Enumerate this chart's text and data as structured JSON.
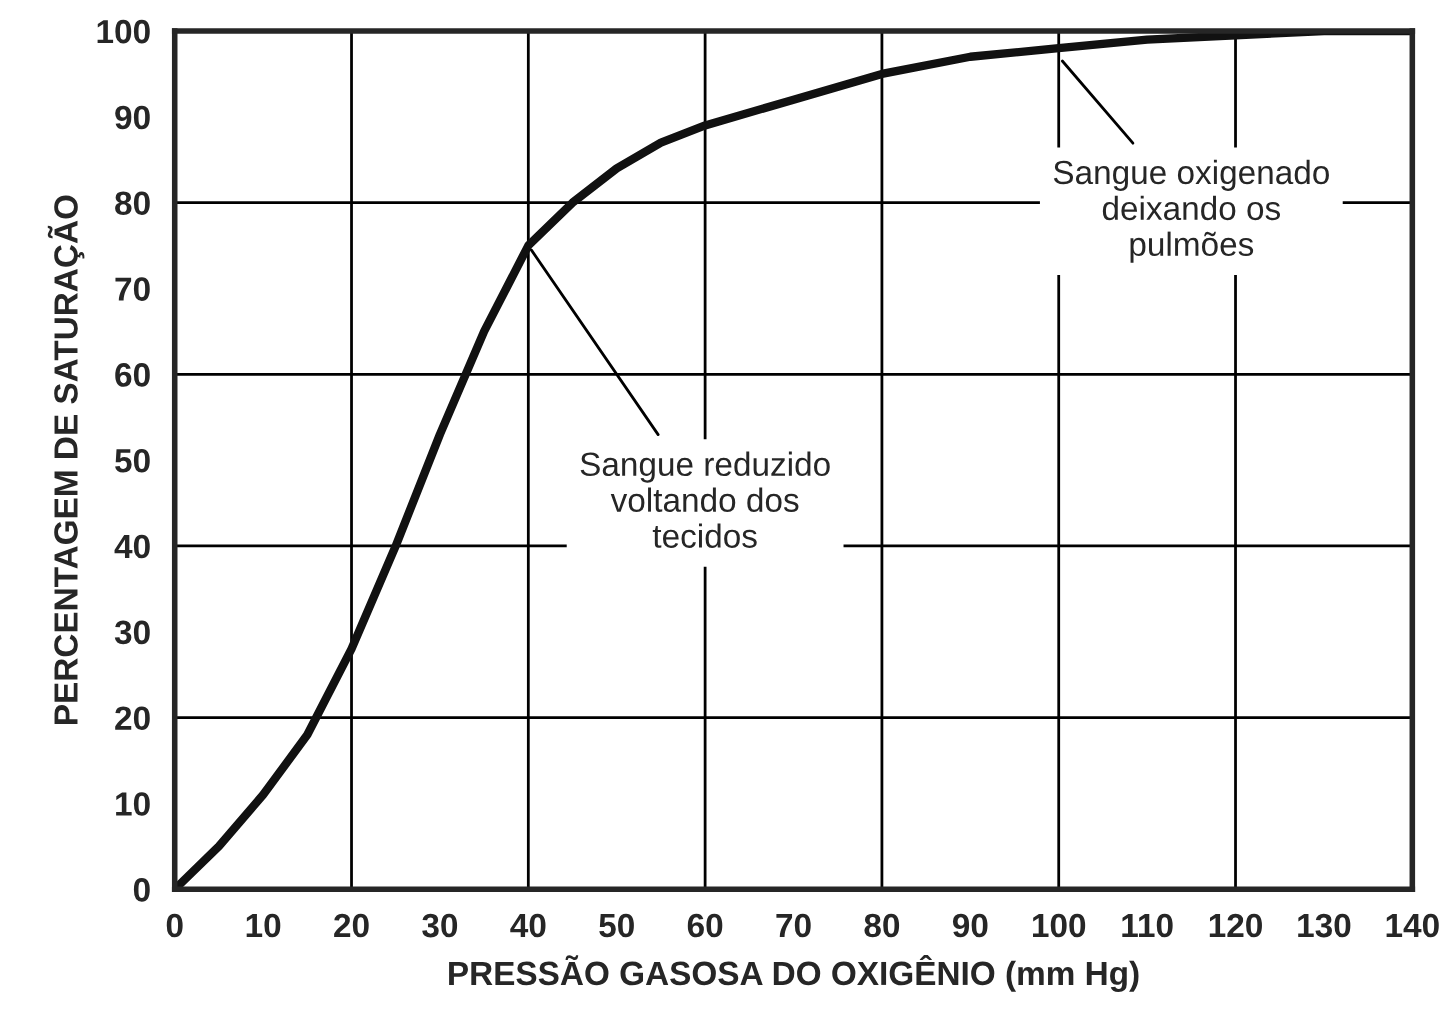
{
  "chart_data": {
    "type": "line",
    "xlabel": "PRESSÃO GASOSA DO OXIGÊNIO (mm Hg)",
    "ylabel": "PERCENTAGEM DE SATURAÇÃO",
    "x": [
      0,
      5,
      10,
      15,
      20,
      25,
      30,
      35,
      40,
      45,
      50,
      55,
      60,
      70,
      80,
      90,
      100,
      110,
      120,
      130,
      140
    ],
    "series": [
      {
        "color": "#111111",
        "values": [
          0,
          5,
          11,
          18,
          28,
          40,
          53,
          65,
          75,
          80,
          84,
          87,
          89,
          92,
          95,
          97,
          98,
          99,
          99.5,
          100,
          100
        ]
      }
    ],
    "xlim": [
      0,
      140
    ],
    "ylim": [
      0,
      100
    ],
    "xticks": [
      0,
      10,
      20,
      30,
      40,
      50,
      60,
      70,
      80,
      90,
      100,
      110,
      120,
      130,
      140
    ],
    "yticks": [
      0,
      10,
      20,
      30,
      40,
      50,
      60,
      70,
      80,
      90,
      100
    ],
    "grid": true,
    "marker": "none",
    "line_style": "solid",
    "legend": false,
    "annotations": [
      {
        "text": "Sangue oxigenado\ndeixando os\npulmões",
        "x": 100,
        "y": 97
      },
      {
        "text": "Sangue reduzido\nvoltando dos\ntecidos",
        "x": 40,
        "y": 75
      }
    ]
  }
}
